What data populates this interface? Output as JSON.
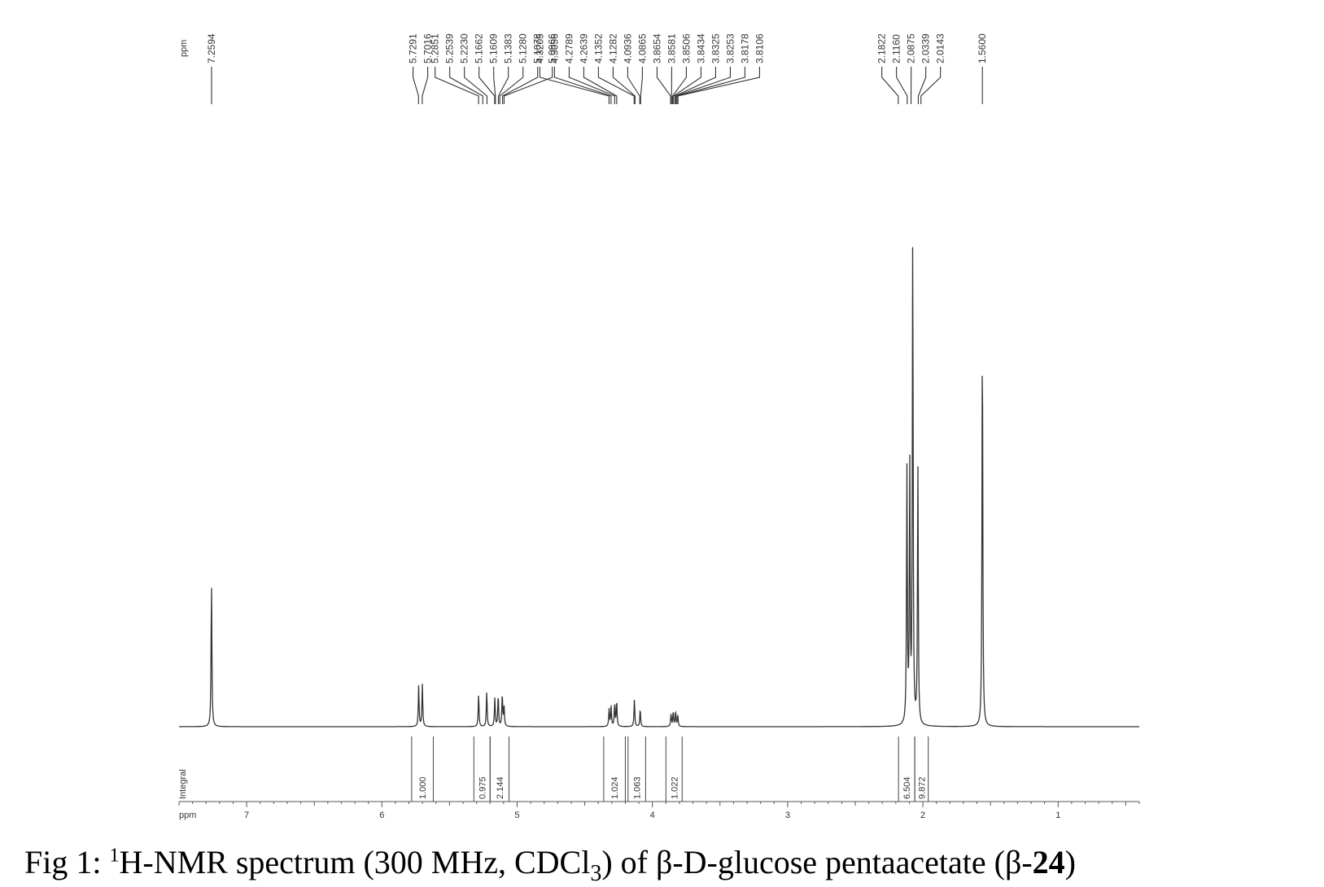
{
  "chart_data": {
    "type": "line",
    "xlabel": "ppm",
    "top_label": "ppm",
    "integral_axis_label": "Integral",
    "xlim": [
      7.5,
      0.4
    ],
    "x_ticks": [
      7,
      6,
      5,
      4,
      3,
      2,
      1
    ],
    "peak_labels": [
      {
        "text": "7.2594",
        "ppm": 7.2594
      },
      {
        "text": "5.7291",
        "ppm": 5.7291
      },
      {
        "text": "5.7016",
        "ppm": 5.7016
      },
      {
        "text": "5.2851",
        "ppm": 5.2851
      },
      {
        "text": "5.2539",
        "ppm": 5.2539
      },
      {
        "text": "5.2230",
        "ppm": 5.223
      },
      {
        "text": "5.1662",
        "ppm": 5.1662
      },
      {
        "text": "5.1609",
        "ppm": 5.1609
      },
      {
        "text": "5.1383",
        "ppm": 5.1383
      },
      {
        "text": "5.1280",
        "ppm": 5.128
      },
      {
        "text": "5.1078",
        "ppm": 5.1078
      },
      {
        "text": "5.0966",
        "ppm": 5.0966
      },
      {
        "text": "4.3205",
        "ppm": 4.3205
      },
      {
        "text": "4.3056",
        "ppm": 4.3056
      },
      {
        "text": "4.2789",
        "ppm": 4.2789
      },
      {
        "text": "4.2639",
        "ppm": 4.2639
      },
      {
        "text": "4.1352",
        "ppm": 4.1352
      },
      {
        "text": "4.1282",
        "ppm": 4.1282
      },
      {
        "text": "4.0936",
        "ppm": 4.0936
      },
      {
        "text": "4.0865",
        "ppm": 4.0865
      },
      {
        "text": "3.8654",
        "ppm": 3.8654
      },
      {
        "text": "3.8581",
        "ppm": 3.8581
      },
      {
        "text": "3.8506",
        "ppm": 3.8506
      },
      {
        "text": "3.8434",
        "ppm": 3.8434
      },
      {
        "text": "3.8325",
        "ppm": 3.8325
      },
      {
        "text": "3.8253",
        "ppm": 3.8253
      },
      {
        "text": "3.8178",
        "ppm": 3.8178
      },
      {
        "text": "3.8106",
        "ppm": 3.8106
      },
      {
        "text": "2.1822",
        "ppm": 2.1822
      },
      {
        "text": "2.1160",
        "ppm": 2.116
      },
      {
        "text": "2.0875",
        "ppm": 2.0875
      },
      {
        "text": "2.0339",
        "ppm": 2.0339
      },
      {
        "text": "2.0143",
        "ppm": 2.0143
      },
      {
        "text": "1.5600",
        "ppm": 1.56
      }
    ],
    "peaks": [
      {
        "ppm": 7.26,
        "intensity": 0.29
      },
      {
        "ppm": 5.728,
        "intensity": 0.082
      },
      {
        "ppm": 5.701,
        "intensity": 0.085
      },
      {
        "ppm": 5.285,
        "intensity": 0.065
      },
      {
        "ppm": 5.225,
        "intensity": 0.07
      },
      {
        "ppm": 5.165,
        "intensity": 0.058
      },
      {
        "ppm": 5.14,
        "intensity": 0.063
      },
      {
        "ppm": 5.11,
        "intensity": 0.065
      },
      {
        "ppm": 5.097,
        "intensity": 0.04
      },
      {
        "ppm": 4.32,
        "intensity": 0.035
      },
      {
        "ppm": 4.305,
        "intensity": 0.04
      },
      {
        "ppm": 4.279,
        "intensity": 0.045
      },
      {
        "ppm": 4.264,
        "intensity": 0.05
      },
      {
        "ppm": 4.133,
        "intensity": 0.055
      },
      {
        "ppm": 4.09,
        "intensity": 0.035
      },
      {
        "ppm": 3.862,
        "intensity": 0.025
      },
      {
        "ppm": 3.846,
        "intensity": 0.03
      },
      {
        "ppm": 3.828,
        "intensity": 0.03
      },
      {
        "ppm": 3.812,
        "intensity": 0.022
      },
      {
        "ppm": 2.118,
        "intensity": 0.51
      },
      {
        "ppm": 2.097,
        "intensity": 0.51
      },
      {
        "ppm": 2.075,
        "intensity": 0.985
      },
      {
        "ppm": 2.037,
        "intensity": 0.52
      },
      {
        "ppm": 1.56,
        "intensity": 0.8
      }
    ],
    "integrals": [
      {
        "from": 5.78,
        "to": 5.62,
        "label": "1.000"
      },
      {
        "from": 5.32,
        "to": 5.2,
        "label": "0.975"
      },
      {
        "from": 5.2,
        "to": 5.06,
        "label": "2.144"
      },
      {
        "from": 4.36,
        "to": 4.2,
        "label": "1.024"
      },
      {
        "from": 4.18,
        "to": 4.05,
        "label": "1.063"
      },
      {
        "from": 3.9,
        "to": 3.78,
        "label": "1.022"
      },
      {
        "from": 2.18,
        "to": 2.06,
        "label": "6.504"
      },
      {
        "from": 2.06,
        "to": 1.96,
        "label": "9.872"
      }
    ]
  },
  "caption": {
    "prefix": "Fig 1: ",
    "superscript": "1",
    "main": "H-NMR spectrum (300 MHz, CDCl",
    "subscript": "3",
    "middle": ") of β-D-glucose pentaacetate (β-",
    "bold": "24",
    "suffix": ")"
  }
}
